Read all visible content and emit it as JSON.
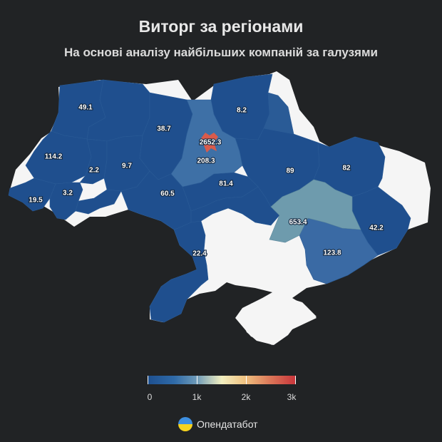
{
  "title": "Виторг за регіонами",
  "subtitle": "На основі аналізу найбільших компаній за галузями",
  "legend": {
    "min": 0,
    "max": 3000,
    "ticks": [
      "0",
      "1k",
      "2k",
      "3k"
    ],
    "colors": [
      "#1d4f8f",
      "#6d9ab8",
      "#f2efc0",
      "#dc7a5a",
      "#c8333a"
    ]
  },
  "map_colors": {
    "no_data": "#f5f5f5",
    "low": "#1f4f8e",
    "mid": "#3e70a6",
    "mid_high": "#6e9bad",
    "high": "#d95b4b"
  },
  "regions": [
    {
      "id": "volyn",
      "value": "49.1"
    },
    {
      "id": "rivne",
      "value": "38.7"
    },
    {
      "id": "chernihiv",
      "value": "8.2"
    },
    {
      "id": "kyiv-city",
      "value": "2652.3"
    },
    {
      "id": "kyiv-oblast",
      "value": "208.3"
    },
    {
      "id": "lviv",
      "value": "114.2"
    },
    {
      "id": "ternopil",
      "value": "2.2"
    },
    {
      "id": "khmelnytskyi",
      "value": "9.7"
    },
    {
      "id": "poltava",
      "value": "89"
    },
    {
      "id": "kharkiv",
      "value": "82"
    },
    {
      "id": "zakarpattia",
      "value": "19.5"
    },
    {
      "id": "ivano-frankivsk",
      "value": "3.2"
    },
    {
      "id": "vinnytsia",
      "value": "60.5"
    },
    {
      "id": "cherkasy",
      "value": "81.4"
    },
    {
      "id": "dnipropetrovsk",
      "value": "653.4"
    },
    {
      "id": "luhansk",
      "value": "42.2"
    },
    {
      "id": "zaporizhzhia",
      "value": "123.8"
    },
    {
      "id": "odesa",
      "value": "22.4"
    }
  ],
  "brand": {
    "name": "Опендатабот",
    "logo_icon": "ukraine-flag-circle-icon"
  }
}
